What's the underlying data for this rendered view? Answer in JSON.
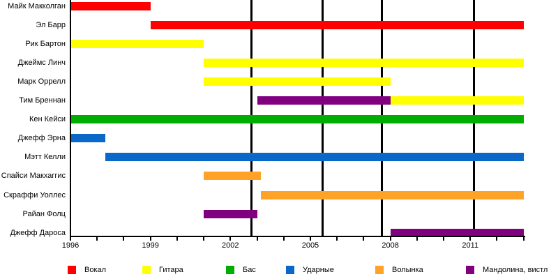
{
  "chart_data": {
    "type": "gantt",
    "title": "",
    "description": "Horizontal timeline of band member tenures by instrument",
    "x_axis": {
      "min": 1996,
      "max": 2013,
      "major_ticks": [
        1996,
        1999,
        2002,
        2005,
        2008,
        2011
      ],
      "minor_tick_step": 1,
      "grid": "off"
    },
    "event_gridlines_years": [
      2002.78,
      2005.45,
      2007.68,
      2011.15
    ],
    "colors": {
      "vocals": "#ff0000",
      "guitar": "#ffff00",
      "bass": "#00ad00",
      "drums": "#0a69c8",
      "bagpipes": "#ffa228",
      "mandolin": "#800080"
    },
    "members": [
      {
        "name": "Майк Макколган",
        "segments": [
          {
            "start": 1996,
            "end": 1999,
            "role": "vocals"
          }
        ]
      },
      {
        "name": "Эл Барр",
        "segments": [
          {
            "start": 1999,
            "end": 2013,
            "role": "vocals"
          }
        ]
      },
      {
        "name": "Рик Бартон",
        "segments": [
          {
            "start": 1996,
            "end": 2001,
            "role": "guitar"
          }
        ]
      },
      {
        "name": "Джеймс Линч",
        "segments": [
          {
            "start": 2001,
            "end": 2013,
            "role": "guitar"
          }
        ]
      },
      {
        "name": "Марк Оррелл",
        "segments": [
          {
            "start": 2001,
            "end": 2008,
            "role": "guitar"
          }
        ]
      },
      {
        "name": "Тим Бреннан",
        "segments": [
          {
            "start": 2003,
            "end": 2008,
            "role": "mandolin"
          },
          {
            "start": 2008,
            "end": 2013,
            "role": "guitar"
          }
        ]
      },
      {
        "name": "Кен Кейси",
        "segments": [
          {
            "start": 1996,
            "end": 2013,
            "role": "bass"
          }
        ]
      },
      {
        "name": "Джефф Эрна",
        "segments": [
          {
            "start": 1996,
            "end": 1997.3,
            "role": "drums"
          }
        ]
      },
      {
        "name": "Мэтт Келли",
        "segments": [
          {
            "start": 1997.3,
            "end": 2013,
            "role": "drums"
          }
        ]
      },
      {
        "name": "Спайси Макхаггис",
        "segments": [
          {
            "start": 2001,
            "end": 2003.15,
            "role": "bagpipes"
          }
        ]
      },
      {
        "name": "Скраффи Уоллес",
        "segments": [
          {
            "start": 2003.15,
            "end": 2013,
            "role": "bagpipes"
          }
        ]
      },
      {
        "name": "Райан Фолц",
        "segments": [
          {
            "start": 2001,
            "end": 2003,
            "role": "mandolin"
          }
        ]
      },
      {
        "name": "Джефф Дароса",
        "segments": [
          {
            "start": 2008,
            "end": 2013,
            "role": "mandolin"
          }
        ]
      }
    ],
    "legend": [
      {
        "label": "Вокал",
        "role": "vocals"
      },
      {
        "label": "Гитара",
        "role": "guitar"
      },
      {
        "label": "Бас",
        "role": "bass"
      },
      {
        "label": "Ударные",
        "role": "drums"
      },
      {
        "label": "Волынка",
        "role": "bagpipes"
      },
      {
        "label": "Мандолина, вистл",
        "role": "mandolin"
      }
    ],
    "legend_position": "bottom"
  }
}
